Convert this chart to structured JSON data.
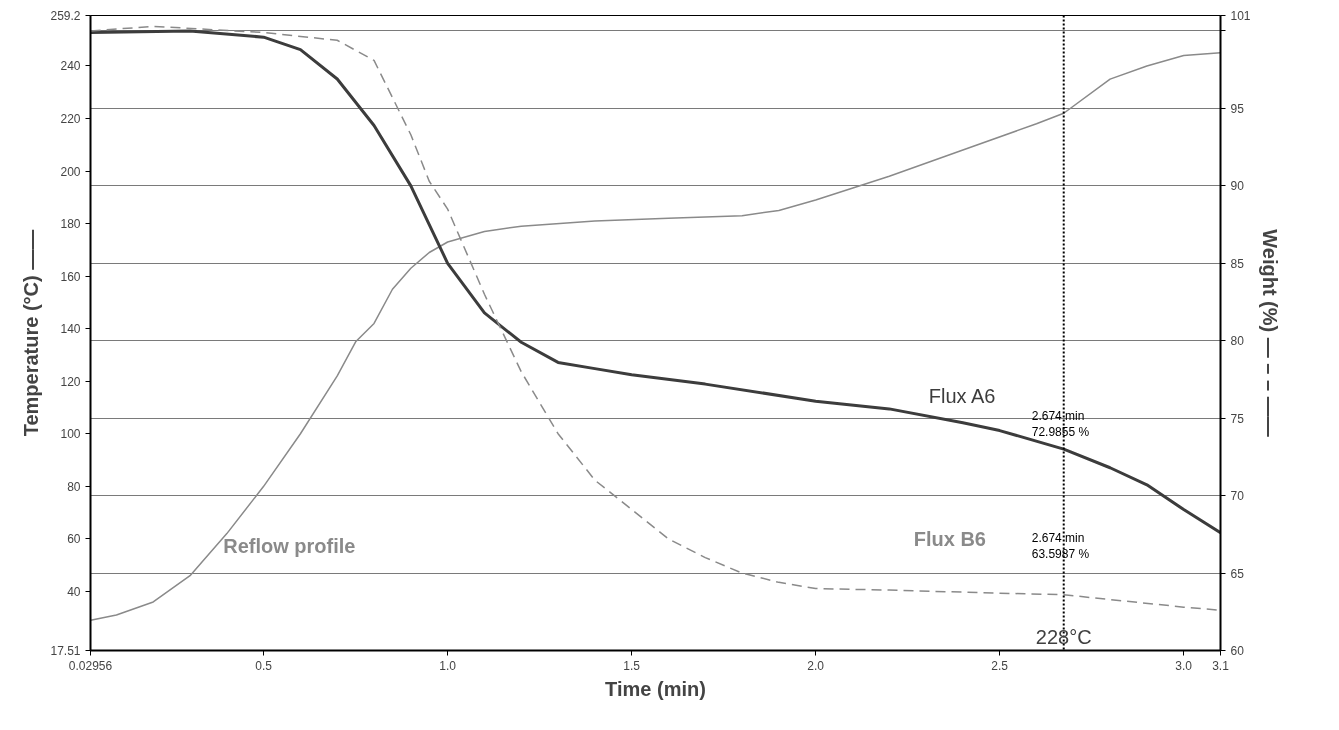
{
  "chart_data": {
    "type": "line",
    "xlabel": "Time (min)",
    "ylabel": "Temperature (°C) ——",
    "y2label": "Weight (%) — – – ——",
    "xlim": [
      0.02956,
      3.1
    ],
    "ylim": [
      17.51,
      259.2
    ],
    "y2lim": [
      60,
      101
    ],
    "xticks": [
      0.02956,
      0.5,
      {
        "value": 1.0,
        "label": "1.0"
      },
      1.5,
      {
        "value": 2.0,
        "label": "2.0"
      },
      2.5,
      {
        "value": 3.0,
        "label": "3.0"
      },
      3.1
    ],
    "yticks": [
      17.51,
      40,
      60,
      80,
      100,
      120,
      140,
      160,
      180,
      200,
      220,
      240,
      259.2
    ],
    "y2ticks": [
      60,
      65,
      70,
      75,
      80,
      85,
      90,
      95,
      {
        "value": 100,
        "label": null
      },
      101
    ],
    "grid": "y2",
    "series": [
      {
        "name": "Reflow profile",
        "color": "#8a8a8a",
        "line_style": "solid",
        "x": [
          0.03,
          0.1,
          0.2,
          0.3,
          0.4,
          0.5,
          0.6,
          0.7,
          0.75,
          0.8,
          0.85,
          0.9,
          0.95,
          1.0,
          1.1,
          1.2,
          1.4,
          1.6,
          1.8,
          1.9,
          2.0,
          2.2,
          2.4,
          2.6,
          2.674,
          2.8,
          2.9,
          3.0,
          3.1
        ],
        "values": [
          29,
          31,
          36,
          46,
          62,
          80,
          100,
          122,
          135,
          142,
          155,
          163,
          169,
          173,
          177,
          179,
          181,
          182,
          183,
          185,
          189,
          198,
          208,
          218,
          222,
          235,
          240,
          244,
          245
        ]
      },
      {
        "name": "Flux A6",
        "color": "#3c3c3c",
        "line_style": "solid",
        "axis": "y2",
        "x": [
          0.03,
          0.3,
          0.5,
          0.6,
          0.7,
          0.8,
          0.9,
          0.95,
          1.0,
          1.1,
          1.2,
          1.3,
          1.4,
          1.5,
          1.7,
          2.0,
          2.2,
          2.4,
          2.5,
          2.674,
          2.8,
          2.9,
          3.0,
          3.1
        ],
        "values": [
          99.9,
          100.0,
          99.6,
          98.8,
          96.9,
          93.9,
          90.0,
          87.5,
          85.0,
          81.8,
          79.9,
          78.6,
          78.2,
          77.8,
          77.2,
          76.1,
          75.6,
          74.7,
          74.2,
          73.0,
          71.8,
          70.7,
          69.1,
          67.6
        ]
      },
      {
        "name": "Flux B6",
        "color": "#8a8a8a",
        "line_style": "dashed",
        "axis": "y2",
        "x": [
          0.03,
          0.2,
          0.5,
          0.7,
          0.8,
          0.9,
          0.95,
          1.0,
          1.1,
          1.2,
          1.3,
          1.4,
          1.5,
          1.6,
          1.7,
          1.8,
          1.9,
          2.0,
          2.2,
          2.5,
          2.674,
          3.0,
          3.1
        ],
        "values": [
          100.0,
          100.3,
          99.9,
          99.4,
          98.1,
          93.3,
          90.3,
          88.5,
          83.0,
          78.0,
          74.0,
          71.0,
          69.1,
          67.2,
          66.0,
          65.0,
          64.4,
          64.0,
          63.9,
          63.7,
          63.6,
          62.8,
          62.6
        ]
      }
    ],
    "ref_lines": [
      {
        "axis": "x",
        "value": 2.674,
        "label": "228°C",
        "color": "#000000",
        "line_style": "dotted"
      }
    ],
    "annotations": [
      "2.674 min\n72.9855 %",
      "2.674 min\n63.5987 %"
    ]
  }
}
